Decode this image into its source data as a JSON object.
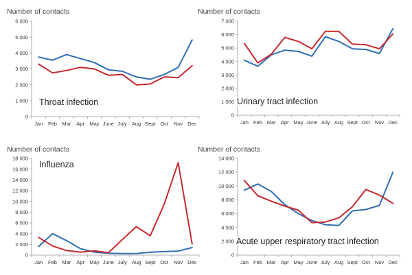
{
  "chart_data": [
    {
      "type": "line",
      "title": "Throat infection",
      "ylabel": "Number of contacts",
      "categories": [
        "Jan",
        "Feb",
        "Mar",
        "Apr",
        "May",
        "June",
        "July",
        "Aug",
        "Sept",
        "Oct",
        "Nov",
        "Dec"
      ],
      "yticks": [
        0,
        1000,
        2000,
        3000,
        4000,
        5000,
        6000
      ],
      "ytick_labels": [
        "0",
        "1 000",
        "2 000",
        "3 000",
        "4 000",
        "5 000",
        "6 000"
      ],
      "ylim": [
        0,
        6000
      ],
      "series": [
        {
          "name": "blue",
          "color": "#2f6db5",
          "values": [
            3750,
            3550,
            3900,
            3650,
            3400,
            2950,
            2850,
            2500,
            2350,
            2650,
            3100,
            4820
          ]
        },
        {
          "name": "red",
          "color": "#c8282d",
          "values": [
            3300,
            2750,
            2900,
            3100,
            3000,
            2600,
            2650,
            2000,
            2050,
            2500,
            2450,
            3200
          ]
        }
      ]
    },
    {
      "type": "line",
      "title": "Urinary tract infection",
      "ylabel": "Number of contacts",
      "categories": [
        "Jan",
        "Feb",
        "Mar",
        "Apr",
        "May",
        "June",
        "July",
        "Aug",
        "Sept",
        "Oct",
        "Nov",
        "Dec"
      ],
      "yticks": [
        0,
        1000,
        2000,
        3000,
        4000,
        5000,
        6000,
        7000
      ],
      "ytick_labels": [
        "0",
        "1 000",
        "2 000",
        "3 000",
        "4 000",
        "5 000",
        "6 000",
        "7 000"
      ],
      "ylim": [
        0,
        7000
      ],
      "series": [
        {
          "name": "blue",
          "color": "#2f6db5",
          "values": [
            4100,
            3650,
            4500,
            4850,
            4750,
            4400,
            5850,
            5500,
            4950,
            4900,
            4600,
            6450
          ]
        },
        {
          "name": "red",
          "color": "#c8282d",
          "values": [
            5350,
            3900,
            4550,
            5800,
            5500,
            4950,
            6250,
            6250,
            5300,
            5250,
            4950,
            6050
          ]
        }
      ]
    },
    {
      "type": "line",
      "title": "Influenza",
      "ylabel": "Number of contacts",
      "categories": [
        "Jan",
        "Feb",
        "Mar",
        "Apr",
        "May",
        "June",
        "July",
        "Aug",
        "Sept",
        "Oct",
        "Nov",
        "Dec"
      ],
      "yticks": [
        0,
        2000,
        4000,
        6000,
        8000,
        10000,
        12000,
        14000,
        16000,
        18000
      ],
      "ytick_labels": [
        "0",
        "2 000",
        "4 000",
        "6 000",
        "8 000",
        "10 000",
        "12 000",
        "14 000",
        "16 000",
        "18 000"
      ],
      "ylim": [
        0,
        18000
      ],
      "series": [
        {
          "name": "blue",
          "color": "#2f6db5",
          "values": [
            1600,
            4000,
            2700,
            1200,
            550,
            350,
            300,
            300,
            550,
            650,
            750,
            1400
          ]
        },
        {
          "name": "red",
          "color": "#c8282d",
          "values": [
            3300,
            1700,
            850,
            550,
            800,
            450,
            2900,
            5300,
            3600,
            9500,
            17200,
            2100
          ]
        }
      ]
    },
    {
      "type": "line",
      "title": "Acute upper respiratory tract infection",
      "ylabel": "Number of contacts",
      "categories": [
        "Jan",
        "Feb",
        "Mar",
        "Apr",
        "May",
        "June",
        "July",
        "Aug",
        "Sept",
        "Oct",
        "Nov",
        "Dec"
      ],
      "yticks": [
        0,
        2000,
        4000,
        6000,
        8000,
        10000,
        12000,
        14000
      ],
      "ytick_labels": [
        "0",
        "2 000",
        "4 000",
        "6 000",
        "8 000",
        "10 000",
        "12 000",
        "14 000"
      ],
      "ylim": [
        0,
        14000
      ],
      "series": [
        {
          "name": "blue",
          "color": "#2f6db5",
          "values": [
            9400,
            10300,
            9200,
            7300,
            6000,
            5000,
            4400,
            4300,
            6400,
            6600,
            7200,
            12000
          ]
        },
        {
          "name": "red",
          "color": "#c8282d",
          "values": [
            10800,
            8600,
            7800,
            7100,
            6500,
            4700,
            4800,
            5400,
            7000,
            9500,
            8700,
            7500
          ]
        }
      ]
    }
  ]
}
